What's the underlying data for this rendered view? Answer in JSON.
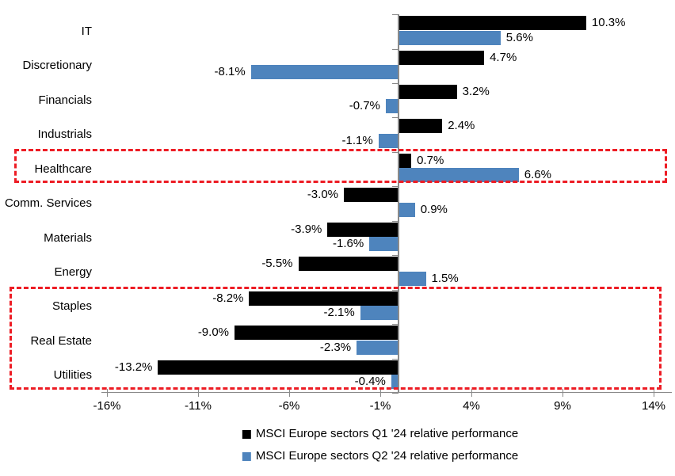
{
  "chart_data": {
    "type": "bar",
    "orientation": "horizontal",
    "categories": [
      "IT",
      "Discretionary",
      "Financials",
      "Industrials",
      "Healthcare",
      "Comm. Services",
      "Materials",
      "Energy",
      "Staples",
      "Real Estate",
      "Utilities"
    ],
    "series": [
      {
        "name": "MSCI Europe sectors Q1 '24 relative performance",
        "color": "#000000",
        "values": [
          10.3,
          4.7,
          3.2,
          2.4,
          0.7,
          -3.0,
          -3.9,
          -5.5,
          -8.2,
          -9.0,
          -13.2
        ],
        "data_labels": [
          "10.3%",
          "4.7%",
          "3.2%",
          "2.4%",
          "0.7%",
          "-3.0%",
          "-3.9%",
          "-5.5%",
          "-8.2%",
          "-9.0%",
          "-13.2%"
        ]
      },
      {
        "name": "MSCI Europe sectors Q2 '24 relative performance",
        "color": "#4E84BD",
        "values": [
          5.6,
          -8.1,
          -0.7,
          -1.1,
          6.6,
          0.9,
          -1.6,
          1.5,
          -2.1,
          -2.3,
          -0.4
        ],
        "data_labels": [
          "5.6%",
          "-8.1%",
          "-0.7%",
          "-1.1%",
          "6.6%",
          "0.9%",
          "-1.6%",
          "1.5%",
          "-2.1%",
          "-2.3%",
          "-0.4%"
        ]
      }
    ],
    "x_axis": {
      "min": -16,
      "max": 14,
      "tick_values": [
        -16,
        -11,
        -6,
        -1,
        4,
        9,
        14
      ],
      "ticks": [
        "-16%",
        "-11%",
        "-6%",
        "-1%",
        "4%",
        "9%",
        "14%"
      ]
    },
    "legend_position": "bottom",
    "grid": "off",
    "colors": {
      "axis": "#8A8A8A",
      "highlight": "#ED1C24",
      "background": "#FFFFFF"
    },
    "highlight_boxes": [
      {
        "rows": [
          "Healthcare"
        ],
        "color": "#ED1C24"
      },
      {
        "rows": [
          "Staples",
          "Real Estate",
          "Utilities"
        ],
        "color": "#ED1C24"
      }
    ]
  }
}
